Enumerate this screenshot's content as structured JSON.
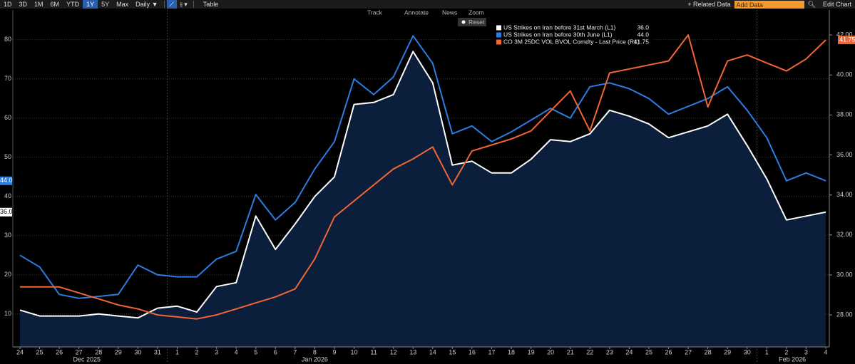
{
  "toolbar": {
    "ranges": [
      "1D",
      "3D",
      "1M",
      "6M",
      "YTD",
      "1Y",
      "5Y",
      "Max"
    ],
    "frequency": "Daily ▼",
    "table": "Table",
    "related": "+ Related Data",
    "add_data": "Add Data",
    "edit": "Edit Chart",
    "tools": [
      "Track",
      "Annotate",
      "News",
      "Zoom"
    ],
    "reset": "Reset"
  },
  "chart_data": {
    "type": "line",
    "categories": [
      "24",
      "25",
      "26",
      "27",
      "28",
      "29",
      "30",
      "31",
      "1",
      "2",
      "3",
      "4",
      "5",
      "6",
      "7",
      "8",
      "9",
      "10",
      "11",
      "12",
      "13",
      "14",
      "15",
      "16",
      "17",
      "18",
      "19",
      "20",
      "21",
      "22",
      "23",
      "24",
      "25",
      "26",
      "27",
      "28",
      "29",
      "30",
      "1",
      "2",
      "3",
      "4"
    ],
    "month_labels": [
      "Dec 2025",
      "Jan 2026",
      "Feb 2026"
    ],
    "ylim": [
      1.6,
      87.6
    ],
    "yticks": [
      10,
      20,
      30,
      40,
      50,
      60,
      70,
      80
    ],
    "y2lim": [
      26.4,
      43.25
    ],
    "y2ticks": [
      {
        "value": 28,
        "label": "28.00"
      },
      {
        "value": 30,
        "label": "30.00"
      },
      {
        "value": 32,
        "label": "32.00"
      },
      {
        "value": 34,
        "label": "34.00"
      },
      {
        "value": 36,
        "label": "36.00"
      },
      {
        "value": 38,
        "label": "38.00"
      },
      {
        "value": 40,
        "label": "40.00"
      },
      {
        "value": 42,
        "label": "42.00"
      }
    ],
    "grid": true,
    "series": [
      {
        "name": "US Strikes on Iran before 31st March (L1)",
        "color": "#ffffff",
        "area": true,
        "last_value_label": "36.0",
        "values": [
          11,
          9.5,
          9.5,
          9.5,
          10,
          9.5,
          9,
          11.5,
          12,
          10.5,
          17,
          18,
          35,
          26.5,
          33,
          40,
          45,
          63.5,
          64,
          66,
          77,
          69,
          48,
          49,
          46,
          46,
          49.5,
          54.5,
          54,
          56,
          62,
          60.5,
          58.5,
          55,
          56.5,
          58,
          61,
          53,
          44.5,
          34,
          35,
          36
        ]
      },
      {
        "name": "US Strikes on Iran before 30th June (L1)",
        "color": "#2a7de1",
        "last_value_label": "44.0",
        "values": [
          25,
          22,
          15,
          14,
          14.5,
          15,
          22.5,
          20,
          19.5,
          19.5,
          24,
          26,
          40.5,
          34,
          38.5,
          47,
          54,
          70,
          66,
          70.5,
          81,
          74,
          56,
          58,
          54,
          56.5,
          59.5,
          62.5,
          60,
          68,
          69,
          67.5,
          65,
          61,
          63,
          65,
          68,
          62,
          55,
          44,
          46,
          44
        ]
      },
      {
        "name": "CO 3M 25DC VOL BVOL Comdty - Last Price (R1)",
        "color": "#f26535",
        "axis": "y2",
        "last_value_label": "41.75",
        "values": [
          29.4,
          29.4,
          29.4,
          29.1,
          28.8,
          28.5,
          28.3,
          28,
          27.9,
          27.8,
          28,
          28.3,
          28.6,
          28.9,
          29.3,
          30.8,
          32.9,
          33.7,
          34.5,
          35.3,
          35.8,
          36.4,
          34.5,
          36.2,
          36.5,
          36.8,
          37.2,
          38.2,
          39.2,
          37.2,
          40.1,
          40.3,
          40.5,
          40.7,
          42,
          38.4,
          40.7,
          41,
          40.6,
          40.2,
          40.8,
          41.75
        ]
      }
    ]
  }
}
